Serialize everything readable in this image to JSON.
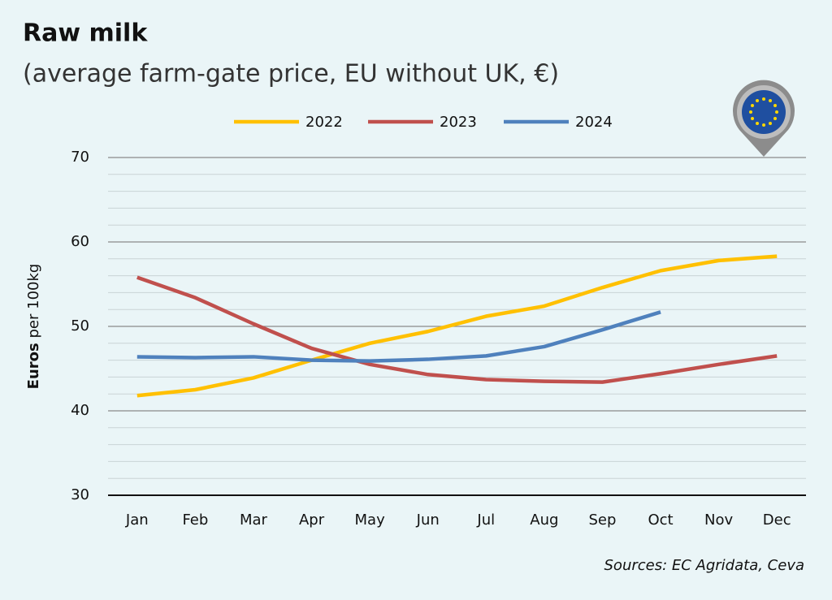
{
  "chart_data": {
    "type": "line",
    "title": "Raw milk",
    "subtitle": "(average farm-gate price, EU without UK, €)",
    "ylabel": [
      "Euros",
      "per 100kg"
    ],
    "source": "Sources: EC Agridata, Ceva",
    "categories": [
      "Jan",
      "Feb",
      "Mar",
      "Apr",
      "May",
      "Jun",
      "Jul",
      "Aug",
      "Sep",
      "Oct",
      "Nov",
      "Dec"
    ],
    "series": [
      {
        "name": "2022",
        "color": "#ffc000",
        "values": [
          41.8,
          42.5,
          43.9,
          46.0,
          48.0,
          49.4,
          51.2,
          52.4,
          54.6,
          56.6,
          57.8,
          58.3
        ]
      },
      {
        "name": "2023",
        "color": "#c0504d",
        "values": [
          55.8,
          53.4,
          50.3,
          47.4,
          45.5,
          44.3,
          43.7,
          43.5,
          43.4,
          44.4,
          45.5,
          46.5
        ]
      },
      {
        "name": "2024",
        "color": "#4f81bd",
        "values": [
          46.4,
          46.3,
          46.4,
          46.0,
          45.9,
          46.1,
          46.5,
          47.6,
          49.6,
          51.7,
          null,
          null
        ]
      }
    ],
    "ylim": [
      30,
      70
    ],
    "yticks": [
      30,
      40,
      50,
      60,
      70
    ],
    "minor_yticks": [
      32,
      34,
      36,
      38,
      42,
      44,
      46,
      48,
      52,
      54,
      56,
      58,
      62,
      64,
      66,
      68
    ],
    "grid": true,
    "legend": "top"
  }
}
